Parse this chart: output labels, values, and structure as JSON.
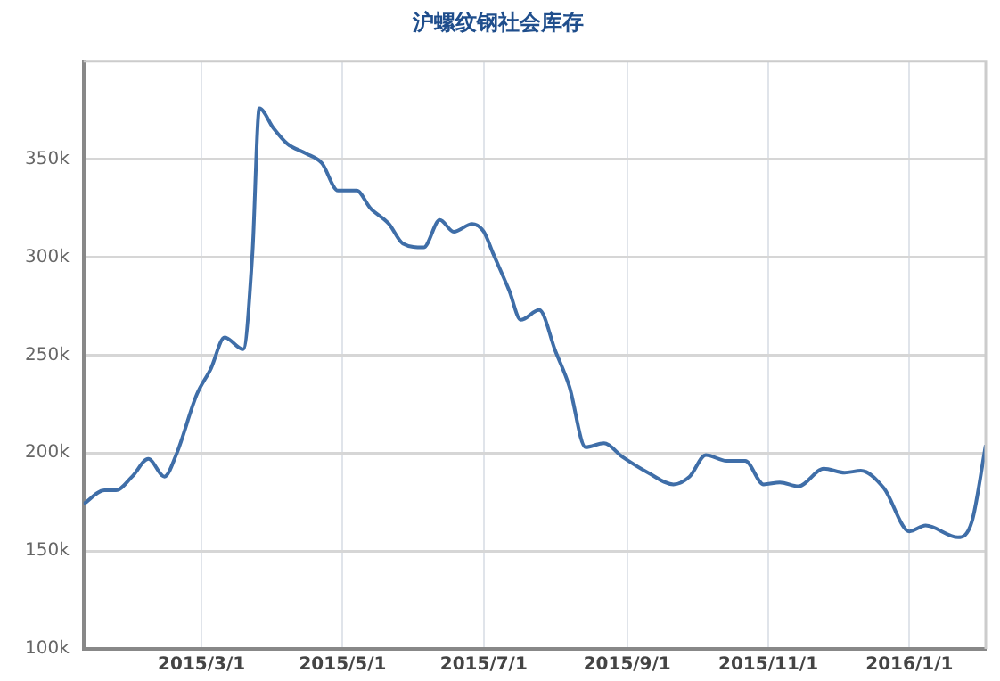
{
  "chart_data": {
    "type": "line",
    "title": "沪螺纹钢社会库存",
    "x": [
      "2015-01-09",
      "2015-01-18",
      "2015-01-23",
      "2015-01-30",
      "2015-02-06",
      "2015-02-13",
      "2015-02-18",
      "2015-02-27",
      "2015-03-05",
      "2015-03-11",
      "2015-03-19",
      "2015-03-23",
      "2015-03-26",
      "2015-04-01",
      "2015-04-07",
      "2015-04-15",
      "2015-04-22",
      "2015-04-29",
      "2015-05-07",
      "2015-05-13",
      "2015-05-21",
      "2015-05-27",
      "2015-06-05",
      "2015-06-12",
      "2015-06-18",
      "2015-06-26",
      "2015-07-01",
      "2015-07-05",
      "2015-07-12",
      "2015-07-17",
      "2015-07-25",
      "2015-08-01",
      "2015-08-07",
      "2015-08-14",
      "2015-08-22",
      "2015-08-30",
      "2015-09-10",
      "2015-09-21",
      "2015-09-28",
      "2015-10-05",
      "2015-10-14",
      "2015-10-22",
      "2015-10-30",
      "2015-11-06",
      "2015-11-14",
      "2015-11-25",
      "2015-12-04",
      "2015-12-11",
      "2015-12-21",
      "2016-01-01",
      "2016-01-08",
      "2016-01-22",
      "2016-01-28",
      "2016-02-03"
    ],
    "series": [
      {
        "color": "#3f6ea8",
        "values": [
          174000,
          181000,
          181000,
          188000,
          197000,
          188000,
          199000,
          230000,
          243000,
          259000,
          253000,
          302000,
          376000,
          366000,
          358000,
          353000,
          348000,
          334000,
          334000,
          325000,
          317000,
          307000,
          305000,
          319000,
          313000,
          317000,
          313000,
          302000,
          283000,
          268000,
          273000,
          252000,
          234000,
          203000,
          205000,
          198000,
          190000,
          184000,
          188000,
          199000,
          196000,
          196000,
          184000,
          185000,
          183000,
          192000,
          190000,
          191000,
          182000,
          160000,
          163000,
          157000,
          165000,
          204000
        ]
      }
    ],
    "xlim": [
      "2015-01-09",
      "2016-02-03"
    ],
    "xticks": [
      {
        "value": "2015-03-01",
        "label": "2015/3/1"
      },
      {
        "value": "2015-05-01",
        "label": "2015/5/1"
      },
      {
        "value": "2015-07-01",
        "label": "2015/7/1"
      },
      {
        "value": "2015-09-01",
        "label": "2015/9/1"
      },
      {
        "value": "2015-11-01",
        "label": "2015/11/1"
      },
      {
        "value": "2016-01-01",
        "label": "2016/1/1"
      }
    ],
    "ylim": [
      100000,
      400000
    ],
    "yticks": [
      {
        "value": 100000,
        "label": "100k"
      },
      {
        "value": 150000,
        "label": "150k"
      },
      {
        "value": 200000,
        "label": "200k"
      },
      {
        "value": 250000,
        "label": "250k"
      },
      {
        "value": 300000,
        "label": "300k"
      },
      {
        "value": 350000,
        "label": "350k"
      }
    ],
    "grid": true,
    "marker": "none",
    "line_style": "solid"
  }
}
